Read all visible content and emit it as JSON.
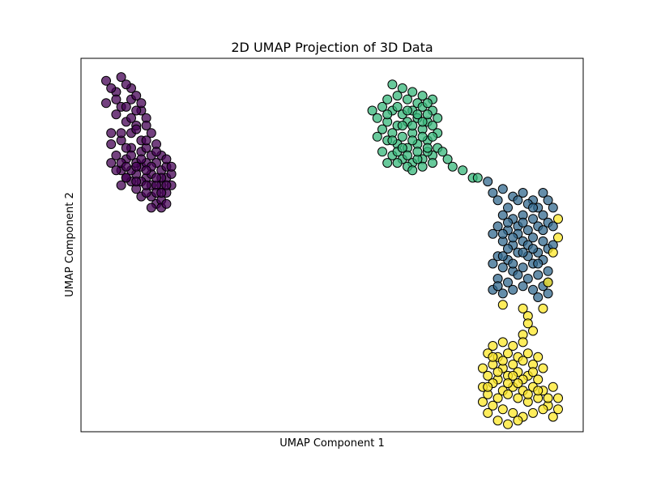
{
  "chart_data": {
    "type": "scatter",
    "title": "2D UMAP Projection of 3D Data",
    "xlabel": "UMAP Component 1",
    "ylabel": "UMAP Component 2",
    "xlim": [
      0,
      100
    ],
    "ylim": [
      0,
      100
    ],
    "xticks": [],
    "yticks": [],
    "grid": false,
    "legend": "none",
    "marker": "circle",
    "point_opacity": 0.75,
    "series": [
      {
        "color": "#440154",
        "points": [
          [
            5,
            94
          ],
          [
            8,
            95
          ],
          [
            10,
            92
          ],
          [
            7,
            91
          ],
          [
            5,
            88
          ],
          [
            8,
            87
          ],
          [
            10,
            89
          ],
          [
            12,
            86
          ],
          [
            13,
            84
          ],
          [
            11,
            82
          ],
          [
            9,
            83
          ],
          [
            7,
            85
          ],
          [
            6,
            80
          ],
          [
            8,
            78
          ],
          [
            10,
            80
          ],
          [
            12,
            78
          ],
          [
            14,
            80
          ],
          [
            15,
            77
          ],
          [
            14,
            74
          ],
          [
            12,
            75
          ],
          [
            10,
            76
          ],
          [
            9,
            73
          ],
          [
            7,
            74
          ],
          [
            6,
            72
          ],
          [
            8,
            70
          ],
          [
            9,
            68
          ],
          [
            11,
            69
          ],
          [
            12,
            71
          ],
          [
            13,
            72
          ],
          [
            15,
            72
          ],
          [
            16,
            70
          ],
          [
            17,
            68
          ],
          [
            16,
            66
          ],
          [
            14,
            66
          ],
          [
            13,
            68
          ],
          [
            11,
            65
          ],
          [
            10,
            67
          ],
          [
            12,
            63
          ],
          [
            14,
            63
          ],
          [
            15,
            61
          ],
          [
            16,
            62
          ],
          [
            17,
            64
          ],
          [
            18,
            66
          ],
          [
            18,
            69
          ],
          [
            17,
            71
          ],
          [
            16,
            74
          ],
          [
            15,
            66
          ],
          [
            11,
            72
          ],
          [
            9,
            76
          ],
          [
            13,
            76
          ],
          [
            6,
            77
          ],
          [
            10,
            70
          ],
          [
            14,
            69
          ],
          [
            12,
            67
          ],
          [
            8,
            66
          ],
          [
            13,
            64
          ],
          [
            15,
            64
          ],
          [
            16,
            60
          ],
          [
            14,
            60
          ],
          [
            17,
            61
          ],
          [
            6,
            92
          ],
          [
            9,
            93
          ],
          [
            11,
            90
          ],
          [
            7,
            89
          ],
          [
            9,
            87
          ],
          [
            11,
            86
          ],
          [
            10,
            84
          ],
          [
            12,
            88
          ],
          [
            13,
            82
          ],
          [
            8,
            80
          ],
          [
            11,
            81
          ],
          [
            13,
            78
          ],
          [
            15,
            75
          ],
          [
            17,
            73
          ],
          [
            18,
            71
          ],
          [
            16,
            68
          ],
          [
            14,
            71
          ],
          [
            12,
            73
          ],
          [
            10,
            74
          ],
          [
            8,
            72
          ],
          [
            7,
            70
          ],
          [
            9,
            71
          ],
          [
            11,
            71
          ],
          [
            13,
            70
          ],
          [
            15,
            68
          ],
          [
            17,
            66
          ],
          [
            16,
            64
          ],
          [
            13,
            66
          ],
          [
            11,
            67
          ],
          [
            9,
            68
          ]
        ]
      },
      {
        "color": "#35b779",
        "points": [
          [
            62,
            93
          ],
          [
            64,
            92
          ],
          [
            66,
            91
          ],
          [
            68,
            90
          ],
          [
            70,
            89
          ],
          [
            67,
            88
          ],
          [
            65,
            89
          ],
          [
            63,
            90
          ],
          [
            61,
            89
          ],
          [
            60,
            87
          ],
          [
            62,
            86
          ],
          [
            64,
            85
          ],
          [
            66,
            86
          ],
          [
            68,
            87
          ],
          [
            70,
            86
          ],
          [
            71,
            84
          ],
          [
            69,
            83
          ],
          [
            67,
            84
          ],
          [
            65,
            83
          ],
          [
            63,
            82
          ],
          [
            61,
            83
          ],
          [
            59,
            84
          ],
          [
            60,
            81
          ],
          [
            62,
            80
          ],
          [
            64,
            79
          ],
          [
            66,
            80
          ],
          [
            68,
            81
          ],
          [
            70,
            82
          ],
          [
            71,
            80
          ],
          [
            69,
            78
          ],
          [
            67,
            77
          ],
          [
            65,
            76
          ],
          [
            63,
            77
          ],
          [
            61,
            78
          ],
          [
            60,
            75
          ],
          [
            62,
            74
          ],
          [
            64,
            73
          ],
          [
            66,
            72
          ],
          [
            68,
            73
          ],
          [
            70,
            74
          ],
          [
            71,
            76
          ],
          [
            69,
            75
          ],
          [
            67,
            73
          ],
          [
            65,
            71
          ],
          [
            66,
            70
          ],
          [
            68,
            71
          ],
          [
            61,
            72
          ],
          [
            63,
            75
          ],
          [
            69,
            88
          ],
          [
            58,
            86
          ],
          [
            59,
            79
          ],
          [
            72,
            75
          ],
          [
            73,
            73
          ],
          [
            74,
            71
          ],
          [
            76,
            70
          ],
          [
            78,
            68
          ],
          [
            79,
            68
          ],
          [
            61,
            85
          ],
          [
            63,
            87
          ],
          [
            65,
            86
          ],
          [
            67,
            85
          ],
          [
            69,
            85
          ],
          [
            64,
            82
          ],
          [
            66,
            82
          ],
          [
            68,
            83
          ],
          [
            62,
            78
          ],
          [
            64,
            76
          ],
          [
            66,
            78
          ],
          [
            68,
            79
          ],
          [
            70,
            79
          ],
          [
            63,
            72
          ],
          [
            65,
            74
          ],
          [
            67,
            75
          ],
          [
            69,
            76
          ],
          [
            70,
            72
          ]
        ]
      },
      {
        "color": "#31688e",
        "points": [
          [
            81,
            67
          ],
          [
            82,
            64
          ],
          [
            84,
            65
          ],
          [
            86,
            63
          ],
          [
            88,
            64
          ],
          [
            90,
            62
          ],
          [
            92,
            64
          ],
          [
            93,
            62
          ],
          [
            91,
            60
          ],
          [
            89,
            61
          ],
          [
            87,
            62
          ],
          [
            85,
            60
          ],
          [
            83,
            62
          ],
          [
            84,
            58
          ],
          [
            86,
            57
          ],
          [
            88,
            58
          ],
          [
            90,
            57
          ],
          [
            92,
            58
          ],
          [
            93,
            56
          ],
          [
            91,
            55
          ],
          [
            89,
            54
          ],
          [
            87,
            55
          ],
          [
            85,
            54
          ],
          [
            83,
            55
          ],
          [
            82,
            53
          ],
          [
            84,
            51
          ],
          [
            86,
            50
          ],
          [
            88,
            51
          ],
          [
            90,
            52
          ],
          [
            92,
            51
          ],
          [
            93,
            49
          ],
          [
            91,
            48
          ],
          [
            89,
            47
          ],
          [
            87,
            48
          ],
          [
            85,
            46
          ],
          [
            83,
            47
          ],
          [
            82,
            45
          ],
          [
            84,
            44
          ],
          [
            86,
            43
          ],
          [
            88,
            44
          ],
          [
            90,
            45
          ],
          [
            92,
            46
          ],
          [
            93,
            43
          ],
          [
            91,
            42
          ],
          [
            89,
            41
          ],
          [
            87,
            42
          ],
          [
            85,
            40
          ],
          [
            83,
            41
          ],
          [
            82,
            38
          ],
          [
            84,
            37
          ],
          [
            86,
            38
          ],
          [
            88,
            39
          ],
          [
            90,
            38
          ],
          [
            92,
            39
          ],
          [
            93,
            37
          ],
          [
            91,
            36
          ],
          [
            94,
            60
          ],
          [
            94,
            55
          ],
          [
            94,
            50
          ],
          [
            93,
            40
          ],
          [
            83,
            39
          ],
          [
            85,
            56
          ],
          [
            87,
            53
          ],
          [
            89,
            50
          ],
          [
            86,
            45
          ],
          [
            88,
            48
          ],
          [
            90,
            49
          ],
          [
            92,
            54
          ],
          [
            85,
            49
          ],
          [
            84,
            47
          ],
          [
            86,
            52
          ],
          [
            91,
            45
          ],
          [
            90,
            60
          ],
          [
            88,
            56
          ],
          [
            84,
            53
          ]
        ]
      },
      {
        "color": "#fde725",
        "points": [
          [
            95,
            57
          ],
          [
            95,
            52
          ],
          [
            94,
            48
          ],
          [
            93,
            40
          ],
          [
            84,
            34
          ],
          [
            88,
            33
          ],
          [
            92,
            33
          ],
          [
            89,
            31
          ],
          [
            89,
            29
          ],
          [
            90,
            27
          ],
          [
            88,
            26
          ],
          [
            88,
            24
          ],
          [
            86,
            23
          ],
          [
            84,
            24
          ],
          [
            82,
            23
          ],
          [
            81,
            21
          ],
          [
            83,
            20
          ],
          [
            85,
            21
          ],
          [
            87,
            20
          ],
          [
            89,
            21
          ],
          [
            91,
            20
          ],
          [
            90,
            18
          ],
          [
            88,
            19
          ],
          [
            86,
            18
          ],
          [
            84,
            17
          ],
          [
            82,
            18
          ],
          [
            80,
            17
          ],
          [
            81,
            15
          ],
          [
            83,
            14
          ],
          [
            85,
            15
          ],
          [
            87,
            16
          ],
          [
            89,
            15
          ],
          [
            91,
            14
          ],
          [
            80,
            12
          ],
          [
            82,
            13
          ],
          [
            84,
            11
          ],
          [
            86,
            12
          ],
          [
            88,
            11
          ],
          [
            90,
            12
          ],
          [
            92,
            11
          ],
          [
            81,
            10
          ],
          [
            83,
            9
          ],
          [
            85,
            10
          ],
          [
            87,
            9
          ],
          [
            89,
            8
          ],
          [
            91,
            9
          ],
          [
            93,
            7
          ],
          [
            82,
            7
          ],
          [
            84,
            6
          ],
          [
            86,
            5
          ],
          [
            88,
            4
          ],
          [
            90,
            5
          ],
          [
            92,
            6
          ],
          [
            94,
            4
          ],
          [
            95,
            6
          ],
          [
            95,
            9
          ],
          [
            87,
            3
          ],
          [
            85,
            2
          ],
          [
            83,
            3
          ],
          [
            81,
            5
          ],
          [
            80,
            8
          ],
          [
            82,
            20
          ],
          [
            84,
            19
          ],
          [
            86,
            15
          ],
          [
            88,
            14
          ],
          [
            90,
            16
          ],
          [
            92,
            17
          ],
          [
            85,
            13
          ],
          [
            87,
            13
          ],
          [
            89,
            10
          ],
          [
            91,
            11
          ],
          [
            83,
            16
          ],
          [
            81,
            12
          ],
          [
            93,
            9
          ],
          [
            94,
            12
          ]
        ]
      }
    ]
  }
}
